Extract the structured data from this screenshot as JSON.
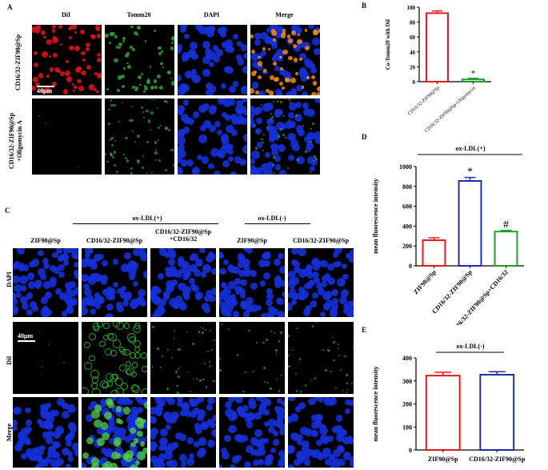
{
  "panel_labels": {
    "a": "A",
    "b": "B",
    "c": "C",
    "d": "D",
    "e": "E"
  },
  "panel_a": {
    "columns": [
      "DiI",
      "Tomm20",
      "DAPI",
      "Merge"
    ],
    "rows": [
      "CD16/32-ZIF90@Sp",
      "CD16/32-ZIF90@Sp +Oligomycin A"
    ],
    "scale_bar": "40μm"
  },
  "panel_c": {
    "group_labels": [
      "ox-LDL(+)",
      "ox-LDL(-)"
    ],
    "columns": [
      "ZIF90@Sp",
      "CD16/32-ZIF90@Sp",
      "CD16/32-ZIF90@Sp +CD16/32",
      "ZIF90@Sp",
      "CD16/32-ZIF90@Sp"
    ],
    "rows": [
      "DAPI",
      "DiI",
      "Merge"
    ],
    "scale_bar": "40μm"
  },
  "colors": {
    "red": "#e8191c",
    "blue": "#1f2fa6",
    "green": "#1f9e2b",
    "nucleus": "#1530d8"
  },
  "chart_data": [
    {
      "panel": "B",
      "type": "bar",
      "categories": [
        "CD16/32-ZIF90@Sp",
        "CD16/32-ZIF90@Sp+Oligomycin"
      ],
      "values": [
        92,
        3
      ],
      "errors": [
        3,
        1.5
      ],
      "bar_colors": [
        "#e8191c",
        "#1f9e2b"
      ],
      "ylabel": "Co-Tomm20 with DiI",
      "ylim": [
        0,
        100
      ],
      "yticks": [
        0,
        20,
        40,
        60,
        80,
        100
      ],
      "annotations": [
        "",
        "*"
      ]
    },
    {
      "panel": "D",
      "type": "bar",
      "group_label": "ox-LDL(+)",
      "categories": [
        "ZIF90@Sp",
        "CD16/32-ZIF90@Sp",
        "CD16/32-ZIF90@Sp+CD16/32"
      ],
      "values": [
        258,
        855,
        345
      ],
      "errors": [
        25,
        35,
        12
      ],
      "bar_colors": [
        "#e8191c",
        "#1f2fa6",
        "#1f9e2b"
      ],
      "ylabel": "mean fluorescence intensity",
      "ylim": [
        0,
        1000
      ],
      "yticks": [
        0,
        200,
        400,
        600,
        800,
        1000
      ],
      "annotations": [
        "",
        "*",
        "#"
      ]
    },
    {
      "panel": "E",
      "type": "bar",
      "group_label": "ox-LDL(-)",
      "categories": [
        "ZIF90@Sp",
        "CD16/32-ZIF90@Sp"
      ],
      "values": [
        323,
        327
      ],
      "errors": [
        15,
        13
      ],
      "bar_colors": [
        "#e8191c",
        "#1f2fa6"
      ],
      "ylabel": "mean fluorescence intensity",
      "ylim": [
        0,
        400
      ],
      "yticks": [
        0,
        100,
        200,
        300,
        400
      ],
      "annotations": [
        "",
        ""
      ]
    }
  ]
}
